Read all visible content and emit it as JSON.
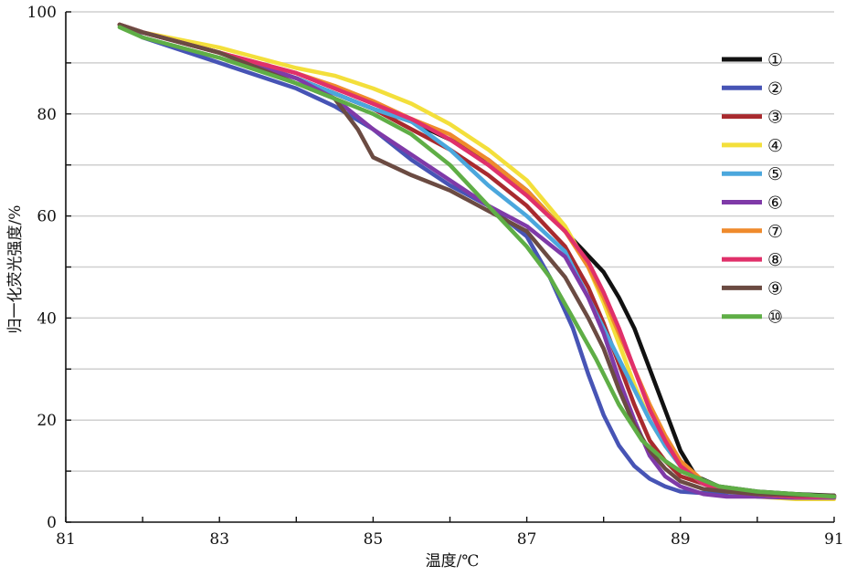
{
  "chart_data": {
    "type": "line",
    "title": "",
    "xlabel": "温度/℃",
    "ylabel": "归一化荧光强度/%",
    "xlim": [
      81,
      91
    ],
    "ylim": [
      0,
      100
    ],
    "x_ticks": [
      "81",
      "83",
      "85",
      "87",
      "89",
      "91"
    ],
    "y_ticks": [
      "0",
      "20",
      "40",
      "60",
      "80",
      "100"
    ],
    "grid": "horizontal",
    "legend_position": "right",
    "series": [
      {
        "name": "①",
        "color": "#111111",
        "x": [
          81.7,
          82,
          83,
          84,
          84.5,
          85,
          85.5,
          86,
          86.5,
          87,
          87.5,
          88,
          88.2,
          88.4,
          88.6,
          88.8,
          89,
          89.2,
          89.5,
          90,
          90.5,
          91
        ],
        "y": [
          97.5,
          96,
          92,
          87,
          84,
          81,
          78.5,
          75,
          71,
          65,
          57,
          49,
          44,
          38,
          30,
          22,
          14,
          9,
          7,
          6,
          5.5,
          5.2
        ]
      },
      {
        "name": "②",
        "color": "#4754b5",
        "x": [
          81.7,
          82,
          83,
          84,
          84.5,
          85,
          85.5,
          86,
          86.5,
          87,
          87.3,
          87.6,
          87.8,
          88,
          88.2,
          88.4,
          88.6,
          88.8,
          89,
          89.5,
          90,
          90.5,
          91
        ],
        "y": [
          97.5,
          95,
          90,
          85,
          81.5,
          77,
          71,
          66,
          62,
          56,
          48,
          38,
          29,
          21,
          15,
          11,
          8.5,
          7,
          6,
          5.5,
          5.2,
          5,
          5
        ]
      },
      {
        "name": "③",
        "color": "#a82a2e",
        "x": [
          81.7,
          82,
          83,
          84,
          84.5,
          85,
          85.5,
          86,
          86.5,
          87,
          87.5,
          87.8,
          88,
          88.2,
          88.4,
          88.6,
          88.8,
          89,
          89.5,
          90,
          90.5,
          91
        ],
        "y": [
          97.5,
          96,
          92,
          87,
          84,
          81,
          77,
          73,
          68,
          62,
          54,
          46,
          39,
          31,
          23,
          16,
          12,
          9,
          6.5,
          5.5,
          5,
          5
        ]
      },
      {
        "name": "④",
        "color": "#f3df3b",
        "x": [
          81.7,
          82,
          83,
          84,
          84.5,
          85,
          85.5,
          86,
          86.5,
          87,
          87.5,
          87.8,
          88,
          88.2,
          88.4,
          88.6,
          88.8,
          89,
          89.3,
          89.6,
          90,
          90.5,
          91
        ],
        "y": [
          97.5,
          96,
          93,
          89,
          87.5,
          85,
          82,
          78,
          73,
          67,
          58,
          50,
          43,
          35,
          27,
          20,
          15,
          11,
          7.5,
          6,
          5,
          4.5,
          4.5
        ]
      },
      {
        "name": "⑤",
        "color": "#4ba7dd",
        "x": [
          81.7,
          82,
          83,
          84,
          84.5,
          85,
          85.5,
          86,
          86.5,
          87,
          87.5,
          87.8,
          88,
          88.2,
          88.4,
          88.6,
          88.8,
          89,
          89.3,
          89.6,
          90,
          90.5,
          91
        ],
        "y": [
          97.5,
          96,
          92,
          87,
          84,
          81,
          78.5,
          73,
          66,
          60,
          53,
          44,
          38,
          32,
          26,
          20,
          15,
          11,
          7.5,
          6,
          5,
          4.8,
          4.8
        ]
      },
      {
        "name": "⑥",
        "color": "#7f3aa8",
        "x": [
          81.7,
          82,
          83,
          84,
          84.5,
          85,
          85.5,
          86,
          86.5,
          87,
          87.5,
          87.8,
          88,
          88.2,
          88.4,
          88.6,
          88.8,
          89,
          89.3,
          89.6,
          90,
          90.5,
          91
        ],
        "y": [
          97.5,
          96,
          92,
          87,
          83,
          77,
          72,
          67,
          62,
          58,
          52,
          44,
          37,
          28,
          20,
          13,
          9,
          7,
          5.5,
          5,
          5,
          4.8,
          4.8
        ]
      },
      {
        "name": "⑦",
        "color": "#ef8a2c",
        "x": [
          81.7,
          82,
          83,
          84,
          84.5,
          85,
          85.5,
          86,
          86.5,
          87,
          87.5,
          87.8,
          88,
          88.2,
          88.4,
          88.6,
          88.8,
          89,
          89.3,
          89.6,
          90,
          90.5,
          91
        ],
        "y": [
          97.5,
          96,
          92,
          88,
          85.5,
          82.5,
          79,
          76,
          71,
          65,
          57,
          50,
          44,
          37,
          30,
          23,
          17,
          12,
          8,
          6.5,
          5.5,
          5,
          5
        ]
      },
      {
        "name": "⑧",
        "color": "#e0306a",
        "x": [
          81.7,
          82,
          83,
          84,
          84.5,
          85,
          85.5,
          86,
          86.5,
          87,
          87.5,
          87.8,
          88,
          88.2,
          88.4,
          88.6,
          88.8,
          89,
          89.3,
          89.6,
          90,
          90.5,
          91
        ],
        "y": [
          97.5,
          96,
          92,
          88,
          85,
          82,
          79,
          75,
          70,
          64,
          57,
          51,
          45,
          38,
          30,
          22,
          16,
          11,
          7.5,
          6,
          5.5,
          5,
          5
        ]
      },
      {
        "name": "⑨",
        "color": "#6b4b42",
        "x": [
          81.7,
          82,
          83,
          84,
          84.5,
          84.8,
          85,
          85.5,
          86,
          86.5,
          87,
          87.5,
          87.8,
          88,
          88.2,
          88.4,
          88.6,
          88.8,
          89,
          89.3,
          89.6,
          90,
          90.5,
          91
        ],
        "y": [
          97.5,
          96,
          92,
          86,
          83,
          77,
          71.5,
          68,
          65,
          61,
          57,
          48,
          40,
          34,
          26,
          19,
          14,
          10.5,
          8,
          6.5,
          6,
          5.5,
          5.3,
          5.2
        ]
      },
      {
        "name": "⑩",
        "color": "#5fae46",
        "x": [
          81.7,
          82,
          83,
          84,
          84.5,
          85,
          85.5,
          86,
          86.5,
          87,
          87.3,
          87.6,
          87.9,
          88.2,
          88.5,
          88.8,
          89,
          89.5,
          90,
          90.5,
          91
        ],
        "y": [
          97,
          95,
          91,
          86,
          83,
          80,
          76,
          70,
          62,
          54,
          48,
          40,
          32,
          23,
          16,
          12,
          10,
          7,
          6,
          5.5,
          5
        ]
      }
    ]
  }
}
